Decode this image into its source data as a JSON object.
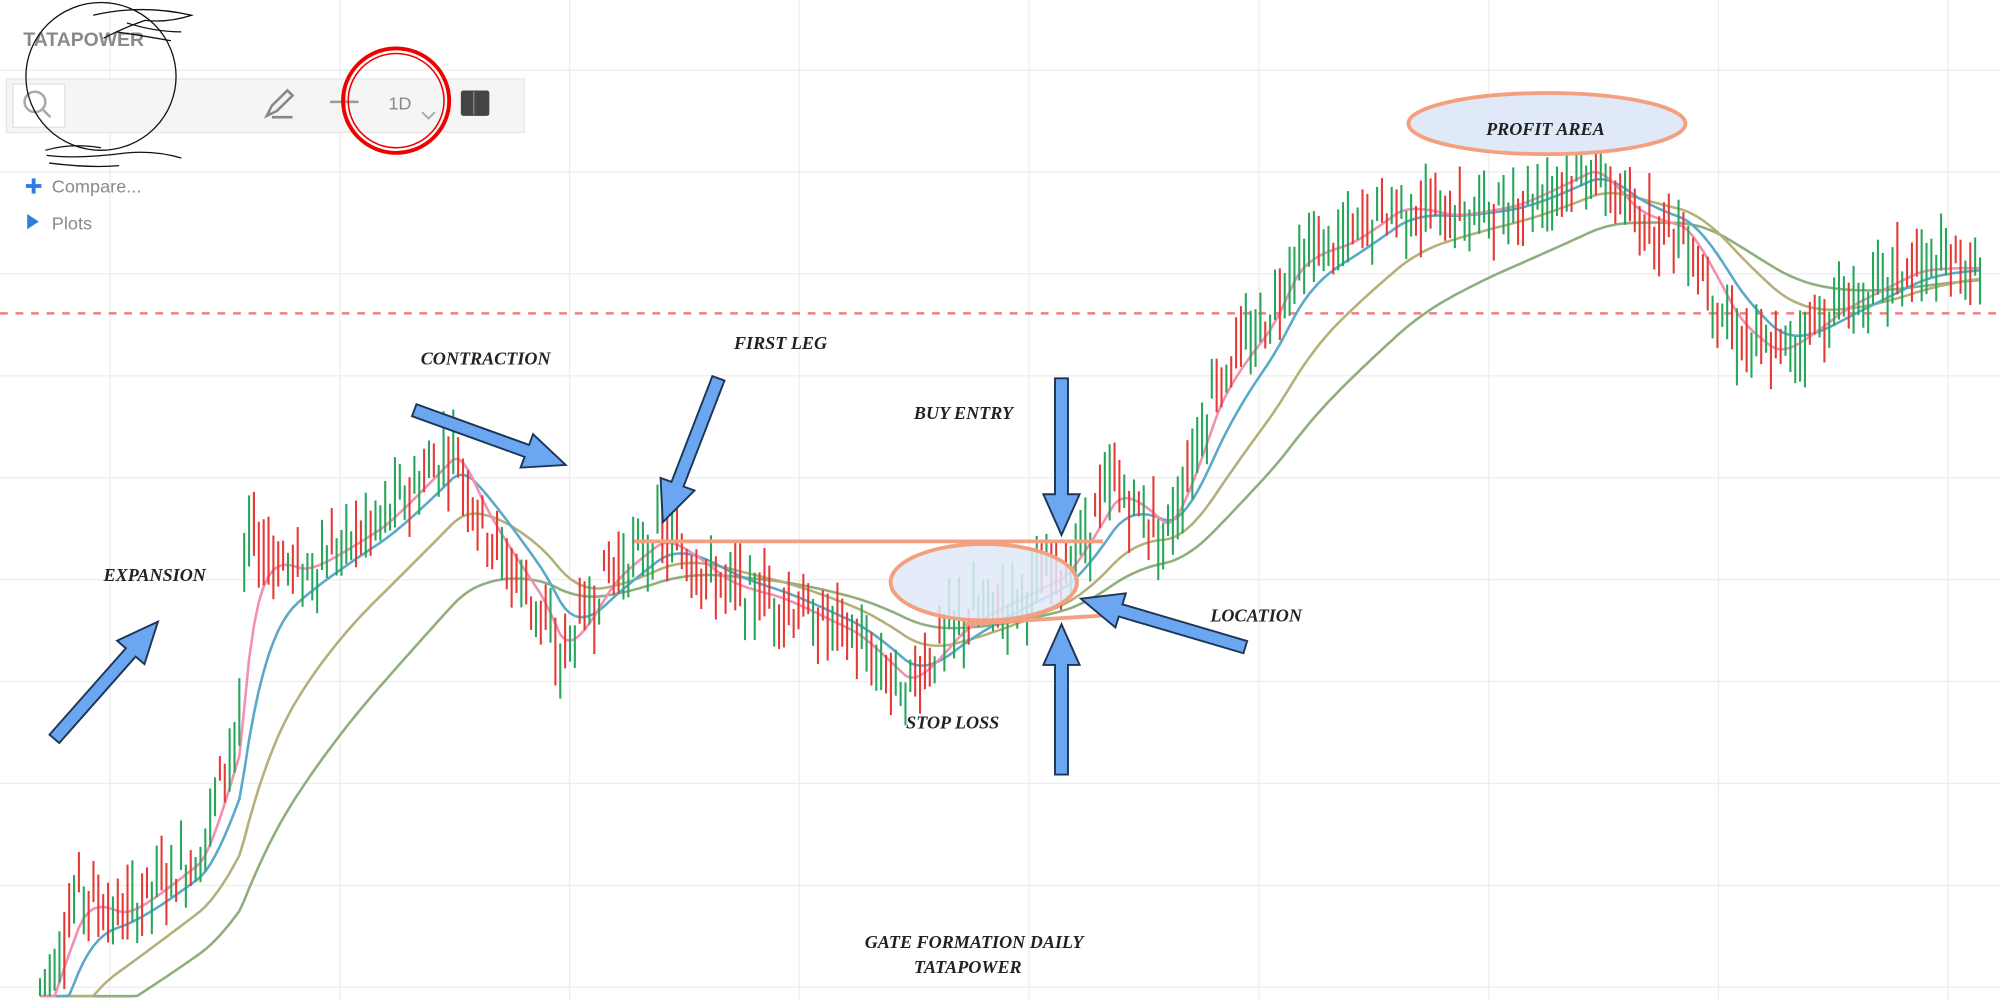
{
  "header": {
    "symbol": "TATAPOWER",
    "interval": "1D",
    "compare_label": "Compare...",
    "plots_label": "Plots"
  },
  "toolbar": {
    "icons": [
      "search-icon",
      "pencil-icon",
      "crosshair-icon",
      "chevron-down-icon",
      "layout-icon"
    ]
  },
  "annotations": {
    "expansion": "EXPANSION",
    "contraction": "CONTRACTION",
    "first_leg": "FIRST LEG",
    "buy_entry": "BUY ENTRY",
    "location": "LOCATION",
    "stop_loss": "STOP LOSS",
    "profit_area": "PROFIT AREA",
    "caption_line1": "GATE FORMATION DAILY",
    "caption_line2": "TATAPOWER"
  },
  "colors": {
    "up": "#26a65b",
    "down": "#e53935",
    "arrow": "#6aa7f0",
    "highlight": "#f4a07e",
    "ellipse_fill": "#dfe9f8",
    "ref_line": "#f08080",
    "ma_fast": "#f48fb1",
    "ma_mid": "#5aa9c9",
    "ma_slow1": "#b5b07a",
    "ma_slow2": "#8fae7e"
  },
  "chart_data": {
    "type": "line",
    "title": "",
    "xlabel": "",
    "ylabel": "",
    "grid": true,
    "note_scale": "relative level, no axis printed",
    "x": [
      2,
      4,
      6,
      10,
      12,
      12.3,
      15,
      19,
      22.7,
      24,
      27,
      28,
      30.4,
      33,
      36.2,
      38.8,
      42.7,
      45.3,
      47.9,
      51.8,
      53.1,
      55.7,
      58.3,
      60.8,
      63.4,
      64.7,
      67.3,
      69.9,
      72.5,
      75.7,
      79.6,
      81.6,
      84.1,
      86.7,
      88.7,
      91.9,
      95.8,
      99
    ],
    "series": [
      {
        "values": [
          0.6,
          10.8,
          8.3,
          14.6,
          28.7,
          46.5,
          42.7,
          47.8,
          55.4,
          47.8,
          38.9,
          33.8,
          42.7,
          46.5,
          41.4,
          40.1,
          36.3,
          31.2,
          37.6,
          41.4,
          42.7,
          51.6,
          46.5,
          61.8,
          68.2,
          74.5,
          75.8,
          79.6,
          78.3,
          79.6,
          83.4,
          78.3,
          77.1,
          66.9,
          64.3,
          69.4,
          73.2,
          73.2
        ]
      }
    ],
    "reference_line": "dashed horizontal",
    "moving_averages": 4
  }
}
